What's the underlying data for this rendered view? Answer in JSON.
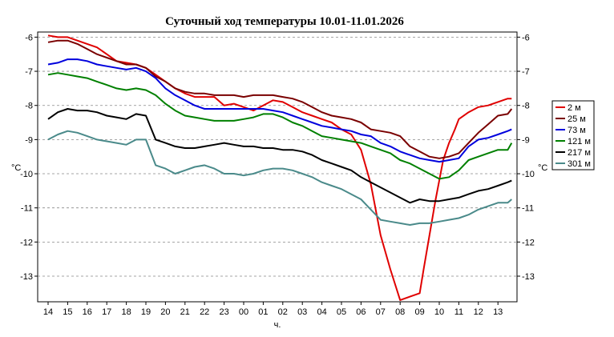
{
  "chart_data": {
    "type": "line",
    "title": "Суточный ход температуры 10.01-11.01.2026",
    "xlabel": "ч.",
    "ylabel_left": "°C",
    "ylabel_right": "°C",
    "ylim": [
      -13.75,
      -5.85
    ],
    "yticks": [
      -6,
      -7,
      -8,
      -9,
      -10,
      -11,
      -12,
      -13
    ],
    "xlim": [
      14,
      13.55
    ],
    "xticks": [
      "14",
      "15",
      "16",
      "17",
      "18",
      "19",
      "20",
      "21",
      "22",
      "23",
      "00",
      "01",
      "02",
      "03",
      "04",
      "05",
      "06",
      "07",
      "08",
      "09",
      "10",
      "11",
      "12",
      "13"
    ],
    "grid": "horizontal dashed",
    "legend_position": "right",
    "series": [
      {
        "name": "2 м",
        "color": "#e00000",
        "x": [
          0,
          0.5,
          1,
          1.5,
          2,
          2.5,
          3,
          3.5,
          4,
          4.5,
          5,
          5.5,
          6,
          6.5,
          7,
          7.5,
          8,
          8.5,
          9,
          9.5,
          10,
          10.5,
          11,
          11.5,
          12,
          12.5,
          13,
          13.5,
          14,
          14.5,
          15,
          15.5,
          16,
          16.5,
          17,
          17.5,
          18,
          18.5,
          19,
          19.2,
          19.5,
          19.8,
          20,
          20.2,
          20.5,
          20.8,
          21,
          21.5,
          22,
          22.5,
          23,
          23.5,
          23.7
        ],
        "y": [
          -5.95,
          -6.0,
          -6.0,
          -6.1,
          -6.2,
          -6.3,
          -6.5,
          -6.7,
          -6.75,
          -6.8,
          -6.9,
          -7.1,
          -7.3,
          -7.5,
          -7.65,
          -7.75,
          -7.75,
          -7.75,
          -8.0,
          -7.95,
          -8.05,
          -8.15,
          -8.0,
          -7.85,
          -7.9,
          -8.05,
          -8.2,
          -8.3,
          -8.4,
          -8.5,
          -8.7,
          -8.85,
          -9.3,
          -10.3,
          -11.8,
          -12.8,
          -13.7,
          -13.6,
          -13.5,
          -12.8,
          -11.8,
          -10.8,
          -10.2,
          -9.6,
          -9.1,
          -8.7,
          -8.4,
          -8.2,
          -8.05,
          -8.0,
          -7.9,
          -7.8,
          -7.8
        ]
      },
      {
        "name": "25 м",
        "color": "#7a0000",
        "x": [
          0,
          0.5,
          1,
          1.5,
          2,
          2.5,
          3,
          3.5,
          4,
          4.5,
          5,
          5.5,
          6,
          6.5,
          7,
          7.5,
          8,
          8.5,
          9,
          9.5,
          10,
          10.5,
          11,
          11.5,
          12,
          12.5,
          13,
          13.5,
          14,
          14.5,
          15,
          15.5,
          16,
          16.5,
          17,
          17.5,
          18,
          18.5,
          19,
          19.5,
          20,
          20.5,
          21,
          21.5,
          22,
          22.5,
          23,
          23.5,
          23.7
        ],
        "y": [
          -6.15,
          -6.1,
          -6.1,
          -6.2,
          -6.35,
          -6.5,
          -6.6,
          -6.7,
          -6.8,
          -6.8,
          -6.9,
          -7.15,
          -7.3,
          -7.5,
          -7.6,
          -7.65,
          -7.65,
          -7.7,
          -7.7,
          -7.7,
          -7.75,
          -7.7,
          -7.7,
          -7.7,
          -7.75,
          -7.8,
          -7.9,
          -8.05,
          -8.2,
          -8.3,
          -8.35,
          -8.4,
          -8.5,
          -8.7,
          -8.75,
          -8.8,
          -8.9,
          -9.2,
          -9.35,
          -9.5,
          -9.55,
          -9.5,
          -9.4,
          -9.1,
          -8.8,
          -8.55,
          -8.3,
          -8.25,
          -8.1
        ]
      },
      {
        "name": "73 м",
        "color": "#0000dd",
        "x": [
          0,
          0.5,
          1,
          1.5,
          2,
          2.5,
          3,
          3.5,
          4,
          4.5,
          5,
          5.5,
          6,
          6.5,
          7,
          7.5,
          8,
          8.5,
          9,
          9.5,
          10,
          10.5,
          11,
          11.5,
          12,
          12.5,
          13,
          13.5,
          14,
          14.5,
          15,
          15.5,
          16,
          16.5,
          17,
          17.5,
          18,
          18.5,
          19,
          19.5,
          20,
          20.5,
          21,
          21.5,
          22,
          22.5,
          23,
          23.5,
          23.7
        ],
        "y": [
          -6.8,
          -6.75,
          -6.65,
          -6.65,
          -6.7,
          -6.8,
          -6.85,
          -6.9,
          -6.95,
          -6.9,
          -7.0,
          -7.2,
          -7.5,
          -7.7,
          -7.85,
          -8.0,
          -8.1,
          -8.1,
          -8.1,
          -8.1,
          -8.1,
          -8.1,
          -8.1,
          -8.15,
          -8.2,
          -8.3,
          -8.4,
          -8.5,
          -8.6,
          -8.65,
          -8.7,
          -8.75,
          -8.85,
          -8.9,
          -9.1,
          -9.2,
          -9.35,
          -9.45,
          -9.55,
          -9.6,
          -9.65,
          -9.6,
          -9.55,
          -9.2,
          -9.0,
          -8.95,
          -8.85,
          -8.75,
          -8.7
        ]
      },
      {
        "name": "121 м",
        "color": "#008000",
        "x": [
          0,
          0.5,
          1,
          1.5,
          2,
          2.5,
          3,
          3.5,
          4,
          4.5,
          5,
          5.5,
          6,
          6.5,
          7,
          7.5,
          8,
          8.5,
          9,
          9.5,
          10,
          10.5,
          11,
          11.5,
          12,
          12.5,
          13,
          13.5,
          14,
          14.5,
          15,
          15.5,
          16,
          16.5,
          17,
          17.5,
          18,
          18.5,
          19,
          19.5,
          20,
          20.5,
          21,
          21.5,
          22,
          22.5,
          23,
          23.5,
          23.7
        ],
        "y": [
          -7.1,
          -7.05,
          -7.1,
          -7.15,
          -7.2,
          -7.3,
          -7.4,
          -7.5,
          -7.55,
          -7.5,
          -7.55,
          -7.7,
          -7.95,
          -8.15,
          -8.3,
          -8.35,
          -8.4,
          -8.45,
          -8.45,
          -8.45,
          -8.4,
          -8.35,
          -8.25,
          -8.25,
          -8.35,
          -8.5,
          -8.6,
          -8.75,
          -8.9,
          -8.95,
          -9.0,
          -9.05,
          -9.1,
          -9.2,
          -9.3,
          -9.4,
          -9.6,
          -9.7,
          -9.85,
          -10.0,
          -10.15,
          -10.1,
          -9.9,
          -9.6,
          -9.5,
          -9.4,
          -9.3,
          -9.3,
          -9.1
        ]
      },
      {
        "name": "217 м",
        "color": "#000000",
        "x": [
          0,
          0.5,
          1,
          1.5,
          2,
          2.5,
          3,
          3.5,
          4,
          4.5,
          5,
          5.5,
          6,
          6.5,
          7,
          7.5,
          8,
          8.5,
          9,
          9.5,
          10,
          10.5,
          11,
          11.5,
          12,
          12.5,
          13,
          13.5,
          14,
          14.5,
          15,
          15.5,
          16,
          16.5,
          17,
          17.5,
          18,
          18.5,
          19,
          19.5,
          20,
          20.5,
          21,
          21.5,
          22,
          22.5,
          23,
          23.5,
          23.7
        ],
        "y": [
          -8.4,
          -8.2,
          -8.1,
          -8.15,
          -8.15,
          -8.2,
          -8.3,
          -8.35,
          -8.4,
          -8.25,
          -8.3,
          -9.0,
          -9.1,
          -9.2,
          -9.25,
          -9.25,
          -9.2,
          -9.15,
          -9.1,
          -9.15,
          -9.2,
          -9.2,
          -9.25,
          -9.25,
          -9.3,
          -9.3,
          -9.35,
          -9.45,
          -9.6,
          -9.7,
          -9.8,
          -9.9,
          -10.1,
          -10.25,
          -10.4,
          -10.55,
          -10.7,
          -10.85,
          -10.75,
          -10.8,
          -10.8,
          -10.75,
          -10.7,
          -10.6,
          -10.5,
          -10.45,
          -10.35,
          -10.25,
          -10.2
        ]
      },
      {
        "name": "301 м",
        "color": "#4a8a8a",
        "x": [
          0,
          0.5,
          1,
          1.5,
          2,
          2.5,
          3,
          3.5,
          4,
          4.5,
          5,
          5.5,
          6,
          6.5,
          7,
          7.5,
          8,
          8.5,
          9,
          9.5,
          10,
          10.5,
          11,
          11.5,
          12,
          12.5,
          13,
          13.5,
          14,
          14.5,
          15,
          15.5,
          16,
          16.5,
          17,
          17.5,
          18,
          18.5,
          19,
          19.5,
          20,
          20.5,
          21,
          21.5,
          22,
          22.5,
          23,
          23.5,
          23.7
        ],
        "y": [
          -9.0,
          -8.85,
          -8.75,
          -8.8,
          -8.9,
          -9.0,
          -9.05,
          -9.1,
          -9.15,
          -9.0,
          -9.0,
          -9.75,
          -9.85,
          -10.0,
          -9.9,
          -9.8,
          -9.75,
          -9.85,
          -10.0,
          -10.0,
          -10.05,
          -10.0,
          -9.9,
          -9.85,
          -9.85,
          -9.9,
          -10.0,
          -10.1,
          -10.25,
          -10.35,
          -10.45,
          -10.6,
          -10.75,
          -11.05,
          -11.35,
          -11.4,
          -11.45,
          -11.5,
          -11.45,
          -11.45,
          -11.4,
          -11.35,
          -11.3,
          -11.2,
          -11.05,
          -10.95,
          -10.85,
          -10.85,
          -10.75
        ]
      }
    ]
  }
}
